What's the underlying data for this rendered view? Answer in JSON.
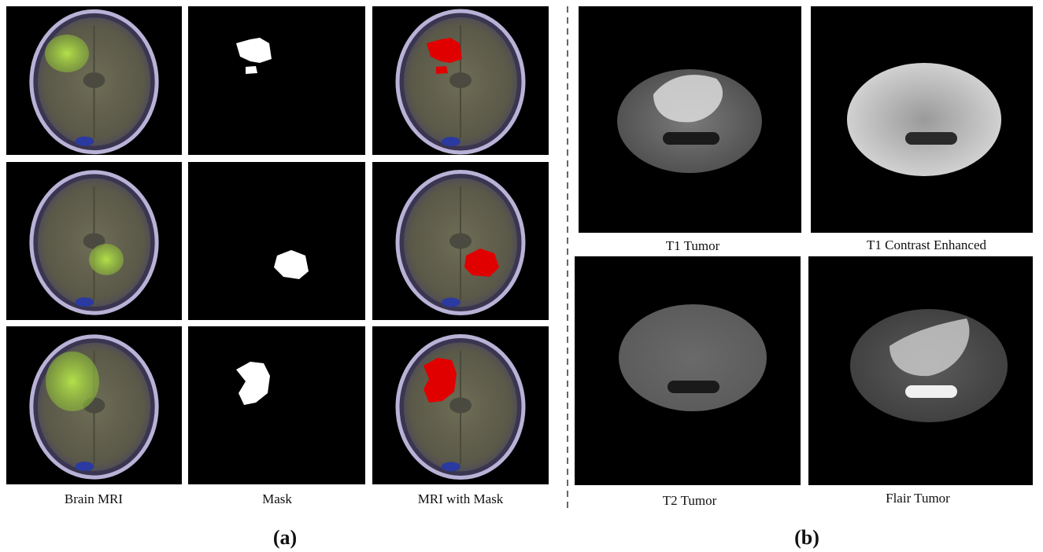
{
  "panel_a": {
    "columns": [
      "Brain MRI",
      "Mask",
      "MRI with Mask"
    ],
    "label": "(a)"
  },
  "panel_b": {
    "images": [
      "T1 Tumor",
      "T1 Contrast Enhanced",
      "T2 Tumor",
      "Flair Tumor"
    ],
    "label": "(b)"
  }
}
